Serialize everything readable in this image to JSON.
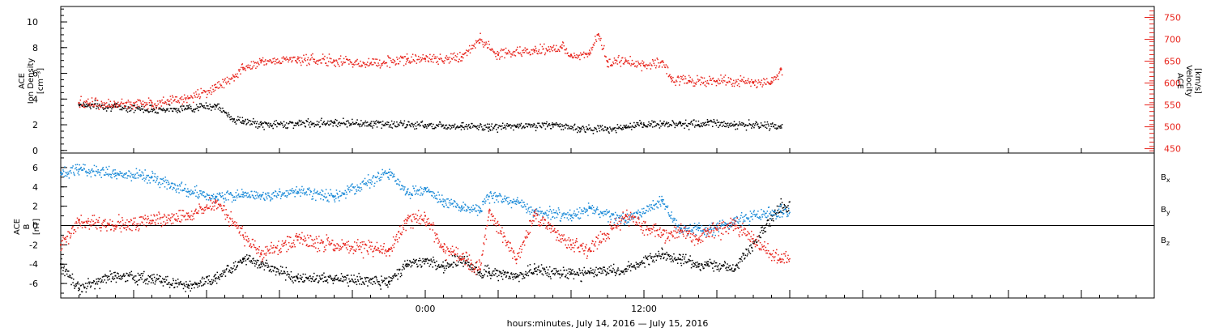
{
  "chart_data": [
    {
      "type": "scatter",
      "panel": "top",
      "ylabel_left": [
        "ACE",
        "Ion Density",
        "[cm⁻³]"
      ],
      "ylabel_right": [
        "ACE",
        "Velocity",
        "[km/s]"
      ],
      "y_left_ticks": [
        "0",
        "2",
        "4",
        "6",
        "8",
        "10"
      ],
      "y_left_range": [
        -0.2,
        11.2
      ],
      "y_right_ticks": [
        "450",
        "500",
        "550",
        "600",
        "650",
        "700",
        "750"
      ],
      "y_right_range": [
        440,
        775
      ],
      "series": [
        {
          "axis": "left",
          "color": "#000000",
          "x_hours": [
            -19,
            -17,
            -15,
            -13,
            -11.5,
            -10.5,
            -10,
            -9,
            -7,
            -5,
            -3,
            -1,
            0,
            2,
            3.5,
            5,
            7,
            8.5,
            10,
            11,
            12,
            13,
            14,
            15,
            15.5,
            17,
            19.5
          ],
          "values": [
            3.6,
            3.4,
            3.2,
            3.3,
            3.5,
            2.4,
            2.3,
            2.0,
            2.1,
            2.2,
            2.1,
            2.0,
            2.0,
            1.9,
            1.8,
            1.9,
            2.0,
            1.7,
            1.7,
            1.8,
            2.0,
            2.1,
            2.1,
            2.0,
            2.2,
            2.0,
            1.9
          ]
        },
        {
          "axis": "right",
          "color": "#e8241c",
          "x_hours": [
            -19,
            -17,
            -15,
            -13,
            -11.5,
            -10.5,
            -10,
            -9,
            -7,
            -5,
            -3,
            -1,
            0,
            2,
            3,
            4,
            6,
            7.5,
            8,
            9,
            9.5,
            10,
            11,
            12,
            13,
            13.5,
            14.5,
            16,
            18,
            19,
            19.5
          ],
          "values": [
            555,
            550,
            555,
            565,
            590,
            615,
            635,
            650,
            655,
            650,
            645,
            655,
            655,
            660,
            700,
            665,
            675,
            680,
            665,
            665,
            710,
            650,
            650,
            640,
            650,
            610,
            605,
            605,
            600,
            600,
            630
          ]
        }
      ]
    },
    {
      "type": "scatter",
      "panel": "bottom",
      "ylabel_left": [
        "ACE",
        "B",
        "[nT]"
      ],
      "y_ticks": [
        "-6",
        "-4",
        "-2",
        "0",
        "2",
        "4",
        "6"
      ],
      "y_range": [
        -7.5,
        7.5
      ],
      "x_ticks": [
        "0:00",
        "12:00"
      ],
      "x_range_hours": [
        -20,
        40
      ],
      "xlabel": "hours:minutes, July 14, 2016 — July 15, 2016",
      "legend_position": "right",
      "series": [
        {
          "name": "B",
          "sub": "x",
          "color": "#000000",
          "x_hours": [
            -20,
            -19,
            -17,
            -15,
            -13,
            -11.5,
            -10,
            -9,
            -7,
            -5,
            -2,
            -1,
            0,
            1,
            2,
            3,
            3.5,
            5,
            6,
            8,
            9,
            11,
            13,
            14,
            15,
            15.5,
            17,
            19.5
          ],
          "values": [
            -4.0,
            -6.5,
            -5.2,
            -5.5,
            -6.2,
            -5.5,
            -3.5,
            -4.0,
            -5.5,
            -5.5,
            -5.8,
            -4.0,
            -3.5,
            -4.2,
            -3.5,
            -4.8,
            -4.8,
            -5.3,
            -4.5,
            -5.0,
            -4.8,
            -4.5,
            -3.0,
            -3.5,
            -4.0,
            -4.0,
            -4.5,
            2.0
          ]
        },
        {
          "name": "B",
          "sub": "y",
          "color": "#1a8ad8",
          "x_hours": [
            -20,
            -19,
            -17,
            -15,
            -13,
            -11.5,
            -10,
            -9,
            -7,
            -5,
            -2,
            -1,
            0,
            1,
            2,
            3,
            3.5,
            5,
            6,
            8,
            9,
            11,
            13,
            14,
            15,
            15.5,
            17,
            19.5
          ],
          "values": [
            5.5,
            5.8,
            5.4,
            5.0,
            3.5,
            3.0,
            3.2,
            3.0,
            3.5,
            3.0,
            5.5,
            3.5,
            3.8,
            2.5,
            2.0,
            1.5,
            3.0,
            2.5,
            1.5,
            1.0,
            1.8,
            0.5,
            2.5,
            -0.5,
            -0.2,
            -0.5,
            0.5,
            1.5
          ]
        },
        {
          "name": "B",
          "sub": "z",
          "color": "#e8241c",
          "x_hours": [
            -20,
            -19,
            -17,
            -15,
            -13,
            -11.5,
            -10,
            -9,
            -7,
            -5,
            -2,
            -1,
            0,
            1,
            2,
            3,
            3.5,
            5,
            6,
            8,
            9,
            11,
            13,
            14,
            15,
            15.5,
            17,
            19.5
          ],
          "values": [
            -2.0,
            0.5,
            0.0,
            0.5,
            1.0,
            2.5,
            -1.0,
            -3.0,
            -1.5,
            -2.0,
            -2.5,
            0.5,
            1.0,
            -2.5,
            -3.5,
            -4.5,
            1.5,
            -3.5,
            1.0,
            -2.0,
            -2.5,
            1.0,
            -1.0,
            -0.5,
            -1.5,
            -0.5,
            0.0,
            -3.5
          ]
        }
      ]
    }
  ]
}
